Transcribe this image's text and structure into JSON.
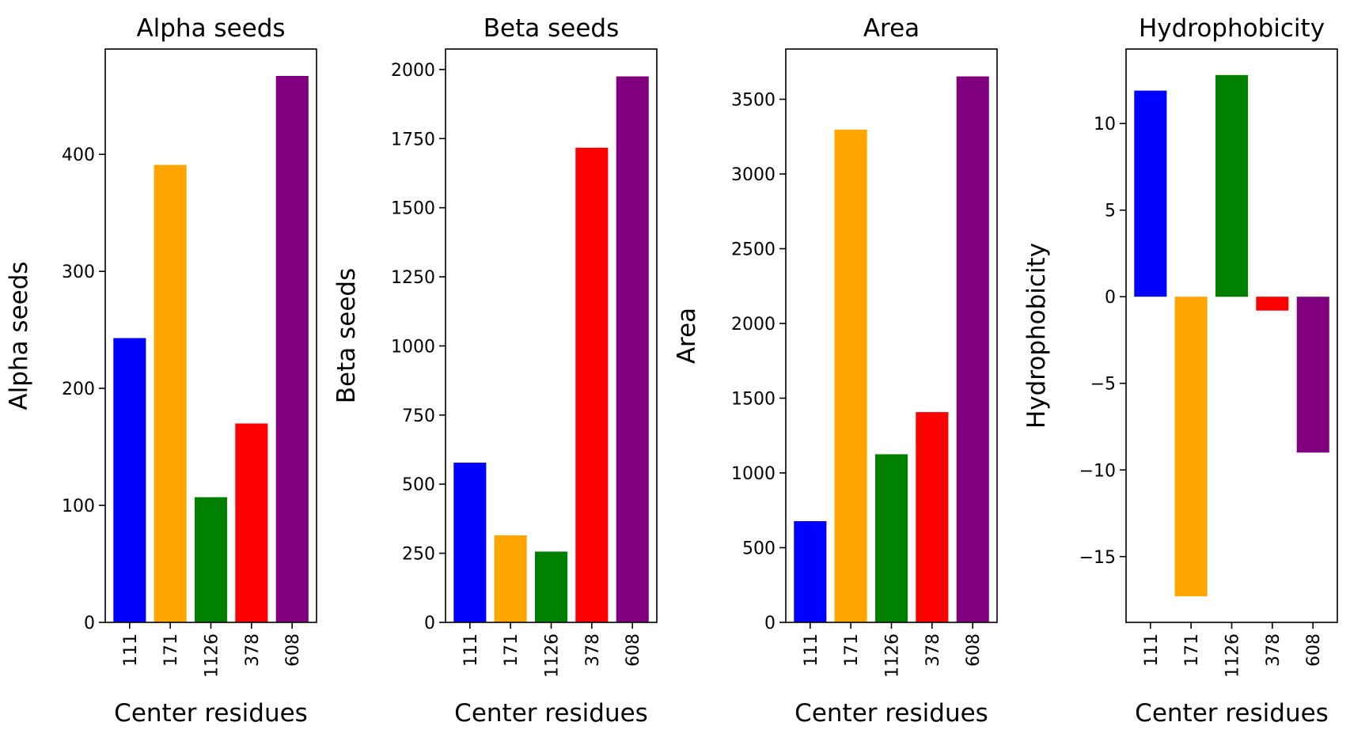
{
  "figure": {
    "background": "#ffffff",
    "bar_colors": [
      "#0000ff",
      "#ffa500",
      "#008000",
      "#ff0000",
      "#800080"
    ]
  },
  "chart_data": [
    {
      "type": "bar",
      "title": "Alpha seeds",
      "xlabel": "Center residues",
      "ylabel": "Alpha seeds",
      "categories": [
        "111",
        "171",
        "1126",
        "378",
        "608"
      ],
      "values": [
        243,
        391,
        107,
        170,
        467
      ],
      "ylim": [
        0,
        490
      ],
      "yticks": [
        0,
        100,
        200,
        300,
        400
      ],
      "ytick_labels": [
        "0",
        "100",
        "200",
        "300",
        "400"
      ],
      "grid": false
    },
    {
      "type": "bar",
      "title": "Beta seeds",
      "xlabel": "Center residues",
      "ylabel": "Beta seeds",
      "categories": [
        "111",
        "171",
        "1126",
        "378",
        "608"
      ],
      "values": [
        578,
        315,
        256,
        1717,
        1975
      ],
      "ylim": [
        0,
        2074
      ],
      "yticks": [
        0,
        250,
        500,
        750,
        1000,
        1250,
        1500,
        1750,
        2000
      ],
      "ytick_labels": [
        "0",
        "250",
        "500",
        "750",
        "1000",
        "1250",
        "1500",
        "1750",
        "2000"
      ],
      "grid": false
    },
    {
      "type": "bar",
      "title": "Area",
      "xlabel": "Center residues",
      "ylabel": "Area",
      "categories": [
        "111",
        "171",
        "1126",
        "378",
        "608"
      ],
      "values": [
        677,
        3297,
        1125,
        1407,
        3653
      ],
      "ylim": [
        0,
        3836
      ],
      "yticks": [
        0,
        500,
        1000,
        1500,
        2000,
        2500,
        3000,
        3500
      ],
      "ytick_labels": [
        "0",
        "500",
        "1000",
        "1500",
        "2000",
        "2500",
        "3000",
        "3500"
      ],
      "grid": false
    },
    {
      "type": "bar",
      "title": "Hydrophobicity",
      "xlabel": "Center residues",
      "ylabel": "Hydrophobicity",
      "categories": [
        "111",
        "171",
        "1126",
        "378",
        "608"
      ],
      "values": [
        11.9,
        -17.3,
        12.8,
        -0.8,
        -9.0
      ],
      "ylim": [
        -18.8,
        14.3
      ],
      "yticks": [
        -15,
        -10,
        -5,
        0,
        5,
        10
      ],
      "ytick_labels": [
        "−15",
        "−10",
        "−5",
        "0",
        "5",
        "10"
      ],
      "grid": false
    }
  ]
}
